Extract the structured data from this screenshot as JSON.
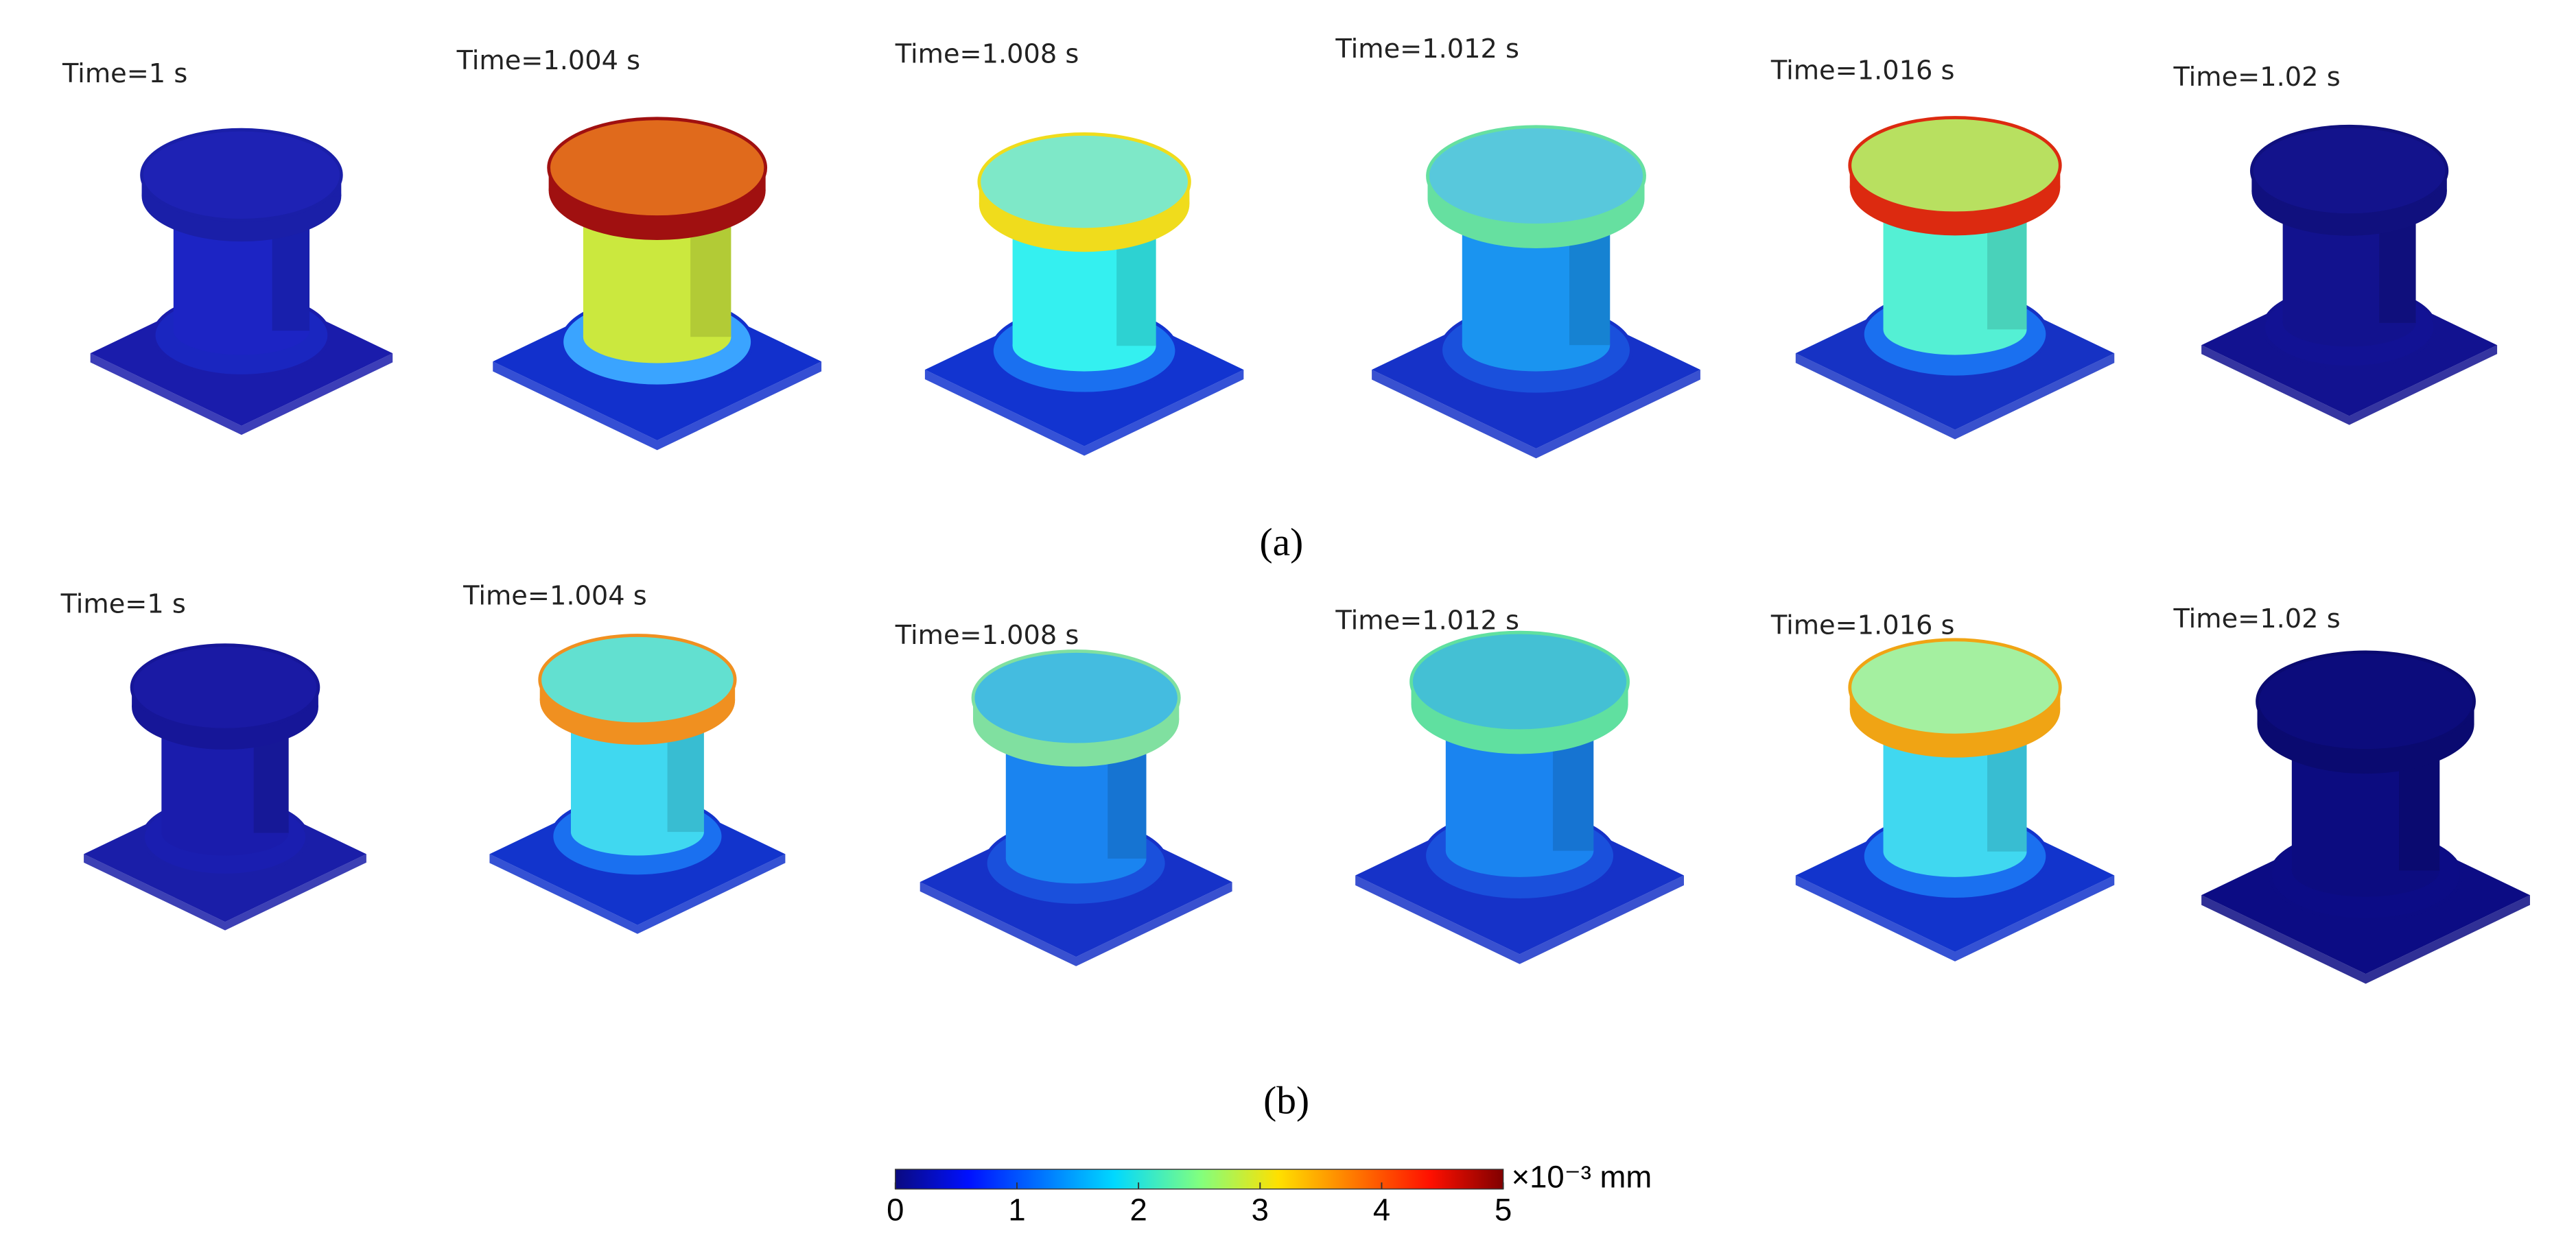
{
  "rows": [
    {
      "caption": "(a)",
      "panels": [
        {
          "label": "Time=1 s",
          "cap": "#1e22b4",
          "edge": "#1a1fa8",
          "body": "#1c24c4",
          "ring": "#1a26c0",
          "base": "#1a1cab"
        },
        {
          "label": "Time=1.004 s",
          "cap": "#e06a1c",
          "edge": "#a01010",
          "body": "#cbe83e",
          "ring": "#3aa4ff",
          "base": "#1230cc"
        },
        {
          "label": "Time=1.008 s",
          "cap": "#7ee8c8",
          "edge": "#f0dc1c",
          "body": "#34f0f0",
          "ring": "#1a70f0",
          "base": "#1234d0"
        },
        {
          "label": "Time=1.012 s",
          "cap": "#58c8dc",
          "edge": "#66e0a0",
          "body": "#1a94f0",
          "ring": "#1a50dc",
          "base": "#1632c8"
        },
        {
          "label": "Time=1.016 s",
          "cap": "#b8e060",
          "edge": "#dc2a10",
          "body": "#54f0d4",
          "ring": "#1a70f0",
          "base": "#1632c4"
        },
        {
          "label": "Time=1.02 s",
          "cap": "#13138c",
          "edge": "#10107e",
          "body": "#12128e",
          "ring": "#121294",
          "base": "#121290"
        }
      ]
    },
    {
      "caption": "(b)",
      "panels": [
        {
          "label": "Time=1 s",
          "cap": "#1a1aa4",
          "edge": "#161698",
          "body": "#1a1cac",
          "ring": "#1a1eb0",
          "base": "#1a1ea8"
        },
        {
          "label": "Time=1.004 s",
          "cap": "#62e0d0",
          "edge": "#f09020",
          "body": "#40d8f0",
          "ring": "#1a70f0",
          "base": "#1234cc"
        },
        {
          "label": "Time=1.008 s",
          "cap": "#44bce0",
          "edge": "#80e0a0",
          "body": "#1a84f0",
          "ring": "#1a50dc",
          "base": "#1632c8"
        },
        {
          "label": "Time=1.012 s",
          "cap": "#44c0d4",
          "edge": "#60e0a0",
          "body": "#1a84f0",
          "ring": "#1a50dc",
          "base": "#1632c8"
        },
        {
          "label": "Time=1.016 s",
          "cap": "#a4f0a0",
          "edge": "#f0a414",
          "body": "#40d8f0",
          "ring": "#1a70f0",
          "base": "#1234cc"
        },
        {
          "label": "Time=1.02 s",
          "cap": "#0c0c7c",
          "edge": "#0a0a70",
          "body": "#0c0c80",
          "ring": "#0c0c86",
          "base": "#0c0c84"
        }
      ]
    }
  ],
  "colorbar": {
    "lim": [
      0,
      5
    ],
    "ticks": [
      0,
      1,
      2,
      3,
      4,
      5
    ],
    "unit": "×10⁻³ mm"
  }
}
